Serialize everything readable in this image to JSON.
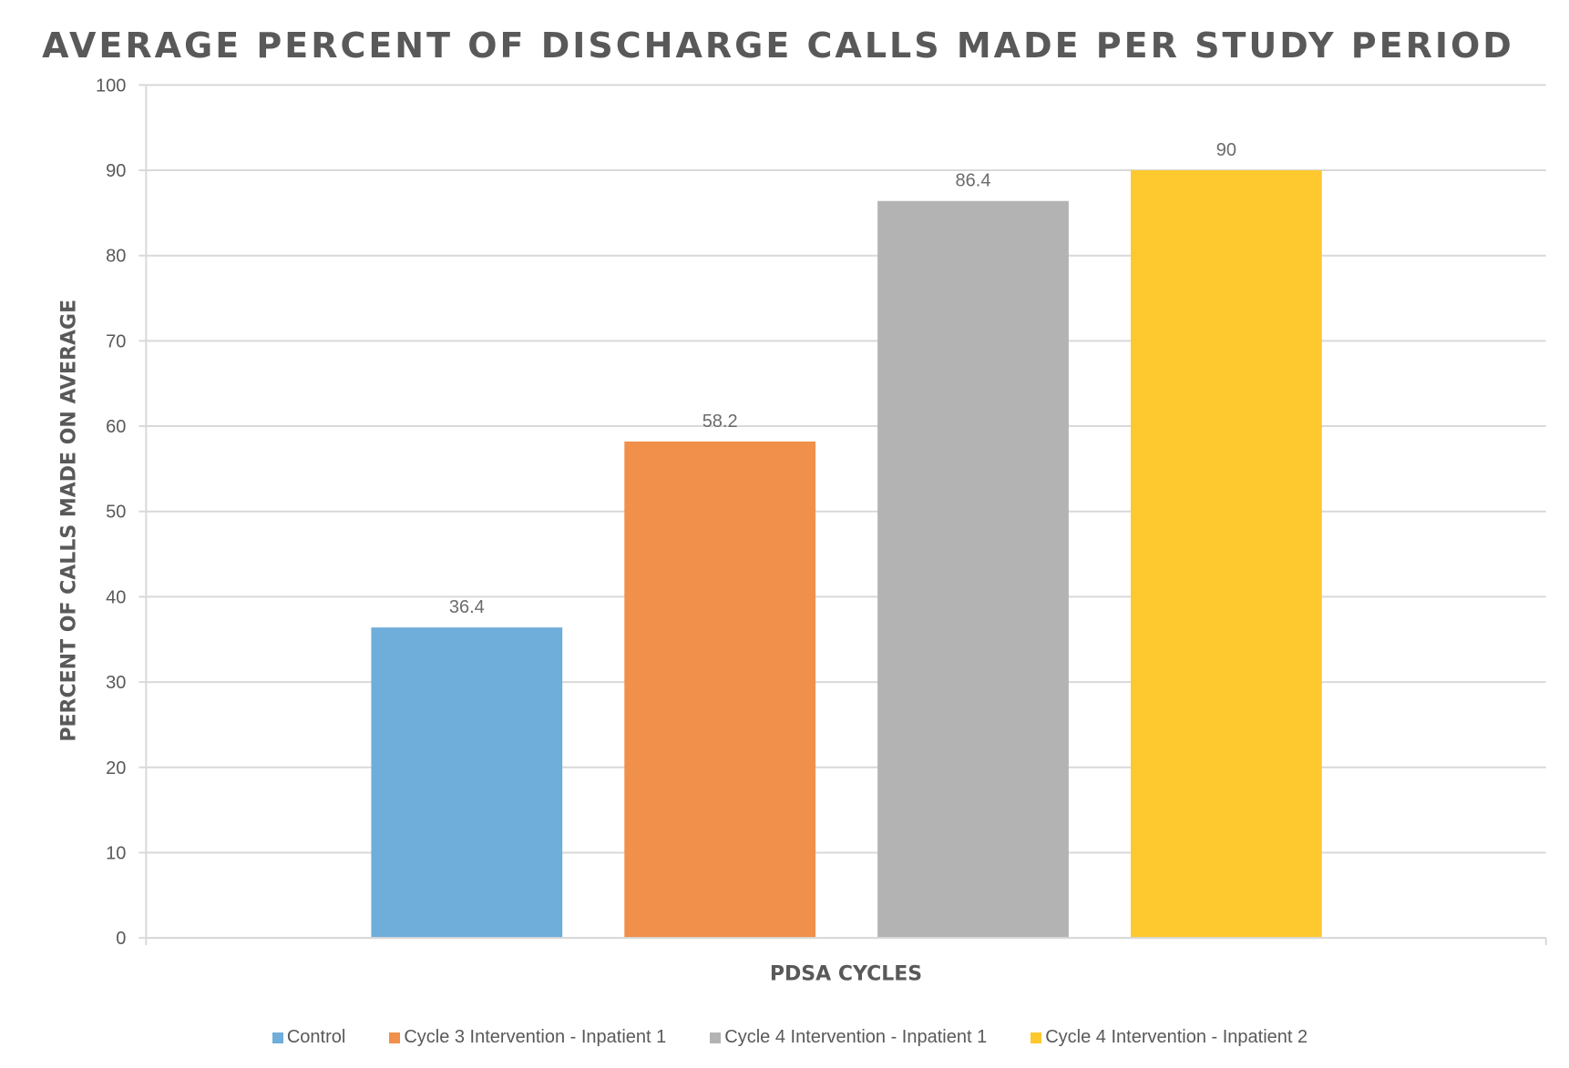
{
  "chart_data": {
    "type": "bar",
    "title": "AVERAGE PERCENT OF DISCHARGE CALLS MADE PER STUDY PERIOD",
    "xlabel": "PDSA CYCLES",
    "ylabel": "PERCENT OF CALLS MADE ON AVERAGE",
    "ylim": [
      0,
      100
    ],
    "yticks": [
      0,
      10,
      20,
      30,
      40,
      50,
      60,
      70,
      80,
      90,
      100
    ],
    "grid": true,
    "legend_position": "bottom",
    "series": [
      {
        "name": "Control",
        "value": 36.4,
        "label": "36.4",
        "color": "#6FADDA"
      },
      {
        "name": "Cycle 3 Intervention - Inpatient 1",
        "value": 58.2,
        "label": "58.2",
        "color": "#F0904A"
      },
      {
        "name": "Cycle 4 Intervention - Inpatient 1",
        "value": 86.4,
        "label": "86.4",
        "color": "#B3B3B3"
      },
      {
        "name": "Cycle 4 Intervention - Inpatient 2",
        "value": 90,
        "label": "90",
        "color": "#FEC82F"
      }
    ]
  }
}
